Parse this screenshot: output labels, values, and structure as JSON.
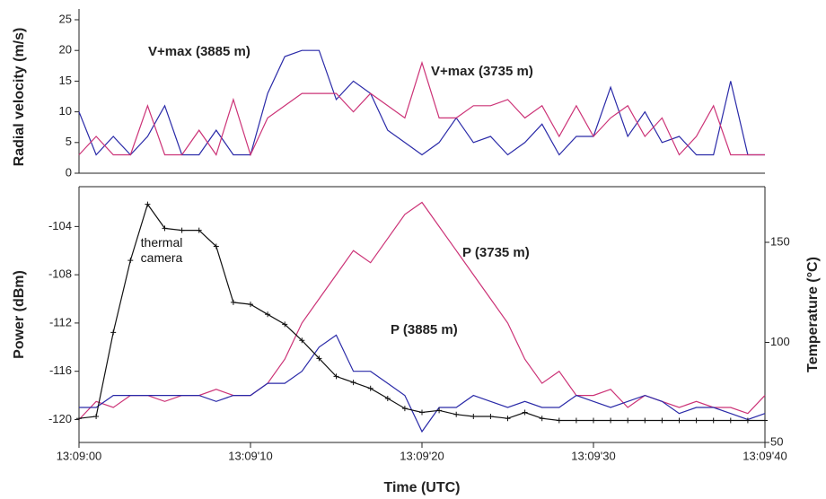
{
  "chart_data": [
    {
      "type": "line",
      "ylabel": "Radial velocity (m/s)",
      "x": [
        0,
        1,
        2,
        3,
        4,
        5,
        6,
        7,
        8,
        9,
        10,
        11,
        12,
        13,
        14,
        15,
        16,
        17,
        18,
        19,
        20,
        21,
        22,
        23,
        24,
        25,
        26,
        27,
        28,
        29,
        30,
        31,
        32,
        33,
        34,
        35,
        36,
        37,
        38,
        39,
        40
      ],
      "xlim": [
        0,
        40
      ],
      "ylim": [
        0,
        25
      ],
      "yticks": [
        0,
        5,
        10,
        15,
        20,
        25
      ],
      "series": [
        {
          "name": "V+max (3885 m)",
          "color": "#2a2aa8",
          "values": [
            10,
            3,
            6,
            3,
            6,
            11,
            3,
            3,
            7,
            3,
            3,
            13,
            19,
            20,
            20,
            12,
            15,
            13,
            7,
            5,
            3,
            5,
            9,
            5,
            6,
            3,
            5,
            8,
            3,
            6,
            6,
            14,
            6,
            10,
            5,
            6,
            3,
            3,
            15,
            3,
            3
          ]
        },
        {
          "name": "V+max (3735 m)",
          "color": "#cc3377",
          "values": [
            3,
            6,
            3,
            3,
            11,
            3,
            3,
            7,
            3,
            12,
            3,
            9,
            11,
            13,
            13,
            13,
            10,
            13,
            11,
            9,
            18,
            9,
            9,
            11,
            11,
            12,
            9,
            11,
            6,
            11,
            6,
            9,
            11,
            6,
            9,
            3,
            6,
            11,
            3,
            3,
            3
          ]
        }
      ]
    },
    {
      "type": "line",
      "ylabel": "Power (dBm)",
      "y2label": "Temperature (°C)",
      "xlabel": "Time (UTC)",
      "x": [
        0,
        1,
        2,
        3,
        4,
        5,
        6,
        7,
        8,
        9,
        10,
        11,
        12,
        13,
        14,
        15,
        16,
        17,
        18,
        19,
        20,
        21,
        22,
        23,
        24,
        25,
        26,
        27,
        28,
        29,
        30,
        31,
        32,
        33,
        34,
        35,
        36,
        37,
        38,
        39,
        40
      ],
      "xlim": [
        0,
        40
      ],
      "xticks": [
        {
          "value": 0,
          "label": "13:09:00"
        },
        {
          "value": 10,
          "label": "13:09'10"
        },
        {
          "value": 20,
          "label": "13:09'20"
        },
        {
          "value": 30,
          "label": "13:09'30"
        },
        {
          "value": 40,
          "label": "13:09'40"
        }
      ],
      "ylim": [
        -121.9,
        -100.7
      ],
      "yticks": [
        -120,
        -116,
        -112,
        -108,
        -104
      ],
      "y2lim": [
        50,
        177.8
      ],
      "y2ticks": [
        50,
        100,
        150
      ],
      "series": [
        {
          "name": "P (3735 m)",
          "color": "#cc3377",
          "values": [
            -120,
            -118.5,
            -119,
            -118,
            -118,
            -118.5,
            -118,
            -118,
            -117.5,
            -118,
            -118,
            -117,
            -115,
            -112,
            -110,
            -108,
            -106,
            -107,
            -105,
            -103,
            -102,
            -104,
            -106,
            -108,
            -110,
            -112,
            -115,
            -117,
            -116,
            -118,
            -118,
            -117.5,
            -119,
            -118,
            -118.5,
            -119,
            -118.5,
            -119,
            -119,
            -119.5,
            -118
          ]
        },
        {
          "name": "P (3885 m)",
          "color": "#2a2aa8",
          "values": [
            -119,
            -119,
            -118,
            -118,
            -118,
            -118,
            -118,
            -118,
            -118.5,
            -118,
            -118,
            -117,
            -117,
            -116,
            -114,
            -113,
            -116,
            -116,
            -117,
            -118,
            -121,
            -119,
            -119,
            -118,
            -118.5,
            -119,
            -118.5,
            -119,
            -119,
            -118,
            -118.5,
            -119,
            -118.5,
            -118,
            -118.5,
            -119.5,
            -119,
            -119,
            -119.5,
            -120,
            -119.5
          ]
        },
        {
          "name": "thermal camera",
          "color": "#111111",
          "axis": "y2",
          "values": [
            62,
            63,
            105,
            141,
            169,
            157,
            156,
            156,
            148,
            120,
            119,
            114,
            109,
            101,
            92,
            83,
            80,
            77,
            72,
            67,
            65,
            66,
            64,
            63,
            63,
            62,
            65,
            62,
            61,
            61,
            61,
            61,
            61,
            61,
            61,
            61,
            61,
            61,
            61,
            61,
            61
          ]
        }
      ]
    }
  ]
}
